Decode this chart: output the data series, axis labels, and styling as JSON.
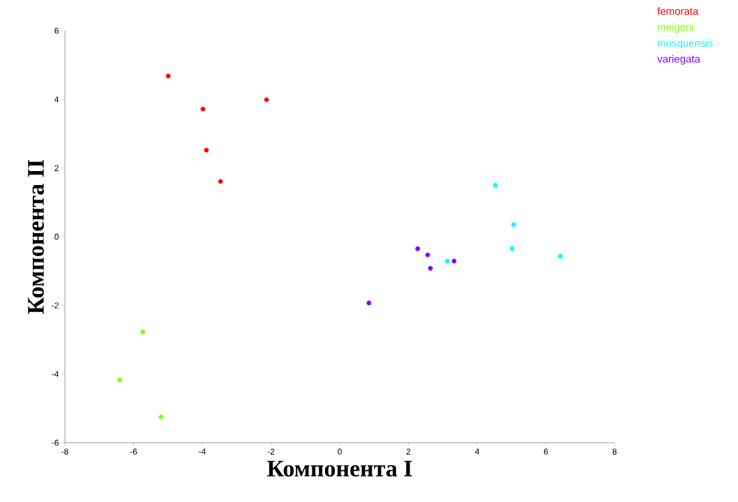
{
  "chart_data": {
    "type": "scatter",
    "xlabel": "Компонента I",
    "ylabel": "Компонента II",
    "xlim": [
      -8,
      8
    ],
    "ylim": [
      -6,
      6
    ],
    "xticks": [
      -8,
      -6,
      -4,
      -2,
      0,
      2,
      4,
      6,
      8
    ],
    "yticks": [
      -6,
      -4,
      -2,
      0,
      2,
      4,
      6
    ],
    "grid": false,
    "legend": "top right",
    "marker": "circle",
    "series": [
      {
        "name": "femorata",
        "color": "#ff0000",
        "x": [
          -4.99,
          -3.98,
          -2.13,
          -3.88,
          -3.47
        ],
        "values": [
          4.68,
          3.72,
          3.99,
          2.52,
          1.61
        ]
      },
      {
        "name": "meigeni",
        "color": "#80ff00",
        "x": [
          -5.73,
          -6.4,
          -5.2
        ],
        "values": [
          -2.77,
          -4.17,
          -5.25
        ]
      },
      {
        "name": "mosquensis",
        "color": "#00ffff",
        "x": [
          4.53,
          5.06,
          5.02,
          6.42,
          3.13
        ],
        "values": [
          1.5,
          0.35,
          -0.35,
          -0.57,
          -0.71
        ]
      },
      {
        "name": "variegata",
        "color": "#8000ff",
        "x": [
          2.27,
          2.56,
          2.64,
          3.33,
          0.85
        ],
        "values": [
          -0.35,
          -0.53,
          -0.92,
          -0.71,
          -1.93
        ]
      }
    ]
  }
}
